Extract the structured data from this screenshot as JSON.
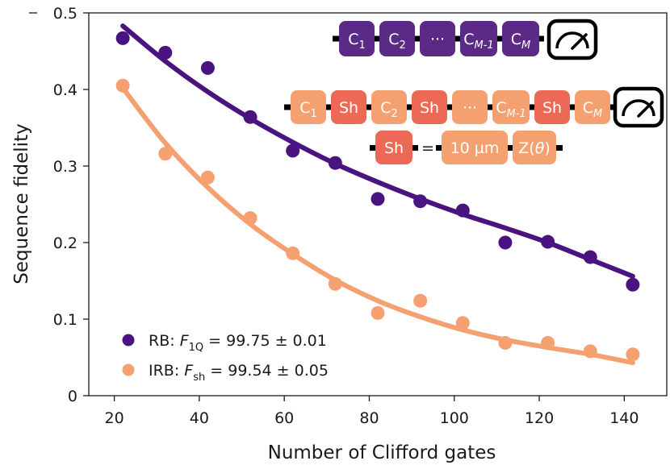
{
  "chart_data": {
    "type": "scatter",
    "title": "",
    "xlabel": "Number of Clifford gates",
    "ylabel": "Sequence fidelity",
    "xlim": [
      14,
      150
    ],
    "ylim": [
      0,
      0.5
    ],
    "xticks": [
      20,
      40,
      60,
      80,
      100,
      120,
      140
    ],
    "xtick_labels": [
      "20",
      "40",
      "60",
      "80",
      "100",
      "120",
      "140"
    ],
    "yticks": [
      0,
      0.1,
      0.2,
      0.3,
      0.4,
      0.5
    ],
    "ytick_labels": [
      "0",
      "0.1",
      "0.2",
      "0.3",
      "0.4",
      "0.5"
    ],
    "series": [
      {
        "name": "RB",
        "legend_prefix": "RB: ",
        "legend_symbol": "F",
        "legend_subscript": "1Q",
        "legend_value": " = 99.75 ± 0.01",
        "color": "#4a1480",
        "x": [
          22,
          32,
          42,
          52,
          62,
          72,
          82,
          92,
          102,
          112,
          122,
          132,
          142
        ],
        "y": [
          0.467,
          0.448,
          0.428,
          0.364,
          0.32,
          0.304,
          0.257,
          0.254,
          0.242,
          0.2,
          0.201,
          0.181,
          0.145
        ],
        "fit_x": [
          22,
          32,
          42,
          52,
          62,
          72,
          82,
          92,
          102,
          112,
          122,
          132,
          142
        ],
        "fit_y": [
          0.483,
          0.437,
          0.397,
          0.362,
          0.331,
          0.303,
          0.279,
          0.257,
          0.237,
          0.219,
          0.2,
          0.178,
          0.156
        ]
      },
      {
        "name": "IRB",
        "legend_prefix": "IRB: ",
        "legend_symbol": "F",
        "legend_subscript": "sh",
        "legend_value": " = 99.54 ± 0.05",
        "color": "#f4a070",
        "x": [
          22,
          32,
          42,
          52,
          62,
          72,
          82,
          92,
          102,
          112,
          122,
          132,
          142
        ],
        "y": [
          0.405,
          0.316,
          0.285,
          0.232,
          0.186,
          0.146,
          0.108,
          0.124,
          0.095,
          0.069,
          0.069,
          0.058,
          0.054
        ],
        "fit_x": [
          22,
          32,
          42,
          52,
          62,
          72,
          82,
          92,
          102,
          112,
          122,
          132,
          142
        ],
        "fit_y": [
          0.402,
          0.33,
          0.272,
          0.224,
          0.185,
          0.151,
          0.124,
          0.103,
          0.086,
          0.073,
          0.063,
          0.054,
          0.043
        ]
      }
    ],
    "inset": {
      "rb_sequence": [
        "C1",
        "C2",
        "···",
        "CM-1",
        "CM"
      ],
      "irb_sequence": [
        "C1",
        "Sh",
        "C2",
        "Sh",
        "···",
        "CM-1",
        "Sh",
        "CM"
      ],
      "sh_definition": {
        "lhs": "Sh",
        "equals": "=",
        "rhs": [
          "10 µm",
          "Z(θ)"
        ]
      },
      "colors": {
        "clifford_rb": "#5b2a86",
        "clifford_irb": "#f4a070",
        "shuttle": "#ec6a55",
        "wire": "#000000"
      }
    }
  }
}
